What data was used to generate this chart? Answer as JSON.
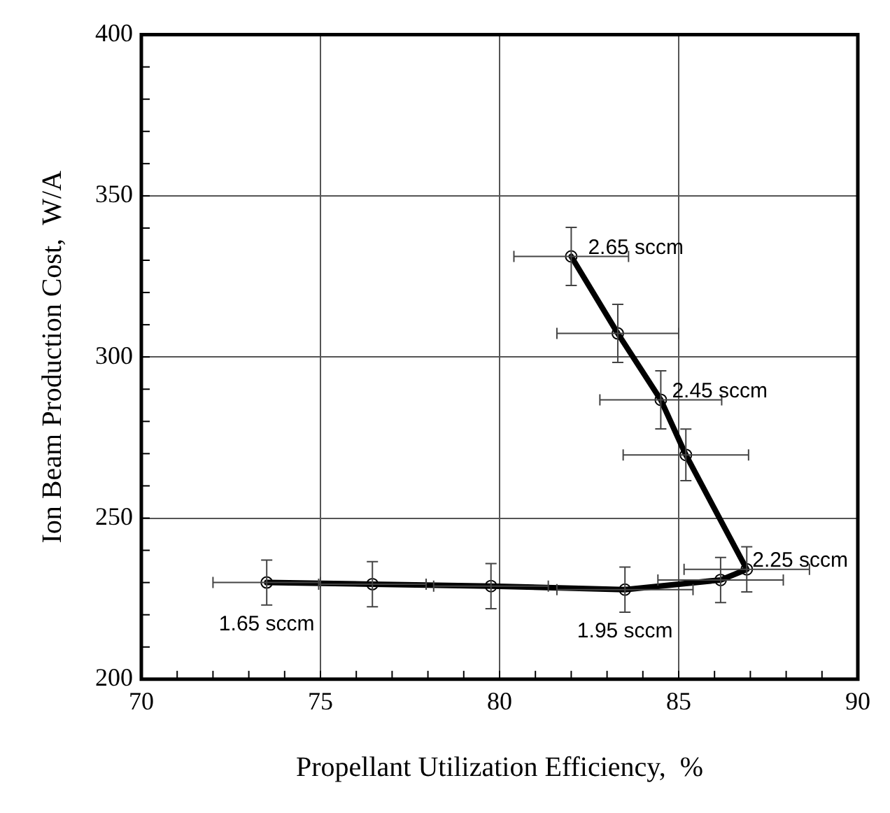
{
  "chart_data": {
    "type": "line",
    "xlabel": "Propellant Utilization Efficiency,  %",
    "ylabel": "Ion Beam Production Cost,  W/A",
    "x": [
      73.5,
      76.45,
      79.76,
      83.5,
      86.17,
      86.9,
      85.2,
      84.5,
      83.3,
      82.0
    ],
    "series": [
      {
        "color": "#000000",
        "values": [
          230,
          229.5,
          228.9,
          227.8,
          230.8,
          234.1,
          269.6,
          286.7,
          307.3,
          331.2
        ],
        "errors": [
          7,
          7,
          7,
          7,
          7,
          7,
          8,
          9,
          9,
          9
        ],
        "xerrors": [
          1.5,
          1.5,
          1.6,
          1.9,
          1.75,
          1.75,
          1.75,
          1.7,
          1.7,
          1.6
        ]
      }
    ],
    "marker": "circle",
    "line_style": "solid",
    "grid": true,
    "legend": false,
    "xlim": [
      70,
      90
    ],
    "ylim": [
      200,
      400
    ],
    "xticks": [
      70,
      {
        "value": 71,
        "label": null
      },
      {
        "value": 72,
        "label": null
      },
      {
        "value": 73,
        "label": null
      },
      {
        "value": 74,
        "label": null
      },
      75,
      {
        "value": 76,
        "label": null
      },
      {
        "value": 77,
        "label": null
      },
      {
        "value": 78,
        "label": null
      },
      {
        "value": 79,
        "label": null
      },
      80,
      {
        "value": 81,
        "label": null
      },
      {
        "value": 82,
        "label": null
      },
      {
        "value": 83,
        "label": null
      },
      {
        "value": 84,
        "label": null
      },
      85,
      {
        "value": 86,
        "label": null
      },
      {
        "value": 87,
        "label": null
      },
      {
        "value": 88,
        "label": null
      },
      {
        "value": 89,
        "label": null
      },
      90
    ],
    "yticks": [
      200,
      {
        "value": 210,
        "label": null
      },
      {
        "value": 220,
        "label": null
      },
      {
        "value": 230,
        "label": null
      },
      {
        "value": 240,
        "label": null
      },
      250,
      {
        "value": 260,
        "label": null
      },
      {
        "value": 270,
        "label": null
      },
      {
        "value": 280,
        "label": null
      },
      {
        "value": 290,
        "label": null
      },
      300,
      {
        "value": 310,
        "label": null
      },
      {
        "value": 320,
        "label": null
      },
      {
        "value": 330,
        "label": null
      },
      {
        "value": 340,
        "label": null
      },
      350,
      {
        "value": 360,
        "label": null
      },
      {
        "value": 370,
        "label": null
      },
      {
        "value": 380,
        "label": null
      },
      {
        "value": 390,
        "label": null
      },
      400
    ],
    "annotations": [
      {
        "text": "2.65 sccm",
        "x": 82.0,
        "y": 331.2
      },
      {
        "text": "2.45 sccm",
        "x": 84.5,
        "y": 286.7
      },
      {
        "text": "2.25 sccm",
        "x": 86.9,
        "y": 234.1
      },
      {
        "text": "1.95 sccm",
        "x": 83.5,
        "y": 227.8
      },
      {
        "text": "1.65 sccm",
        "x": 73.5,
        "y": 230
      }
    ]
  }
}
